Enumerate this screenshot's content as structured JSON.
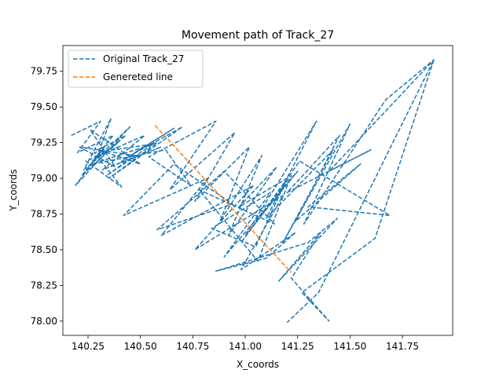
{
  "chart_data": {
    "type": "line",
    "title": "Movement path of Track_27",
    "xlabel": "X_coords",
    "ylabel": "Y_coords",
    "xlim": [
      140.13,
      141.99
    ],
    "ylim": [
      77.9,
      79.93
    ],
    "xticks": [
      140.25,
      140.5,
      140.75,
      141.0,
      141.25,
      141.5,
      141.75
    ],
    "xtick_labels": [
      "140.25",
      "140.50",
      "140.75",
      "141.00",
      "141.25",
      "141.50",
      "141.75"
    ],
    "yticks": [
      78.0,
      78.25,
      78.5,
      78.75,
      79.0,
      79.25,
      79.5,
      79.75
    ],
    "ytick_labels": [
      "78.00",
      "78.25",
      "78.50",
      "78.75",
      "79.00",
      "79.25",
      "79.50",
      "79.75"
    ],
    "grid": false,
    "legend_position": "top-left",
    "series": [
      {
        "name": "Original Track_27",
        "color": "#1f77b4",
        "style": "dashed",
        "x": [
          140.17,
          140.31,
          140.2,
          140.37,
          140.27,
          140.4,
          140.22,
          140.33,
          140.19,
          140.45,
          140.29,
          140.36,
          140.23,
          140.43,
          140.3,
          140.5,
          140.26,
          140.38,
          140.21,
          140.47,
          140.34,
          140.56,
          140.28,
          140.41,
          140.24,
          140.52,
          140.32,
          140.6,
          140.39,
          140.66,
          140.44,
          140.7,
          140.35,
          140.58,
          140.27,
          140.62,
          140.74,
          140.54,
          140.86,
          140.64,
          140.95,
          140.76,
          141.02,
          140.88,
          141.08,
          140.92,
          141.15,
          140.97,
          141.2,
          141.05,
          140.84,
          141.12,
          140.9,
          141.25,
          141.0,
          141.34,
          141.1,
          141.42,
          141.18,
          141.5,
          141.28,
          141.67,
          141.9,
          141.4,
          141.6,
          141.2,
          141.45,
          141.24,
          141.55,
          141.3,
          141.69,
          141.26,
          140.98,
          141.22,
          141.06,
          140.78,
          141.14,
          140.9,
          140.58,
          140.94,
          140.66,
          140.42,
          140.82,
          140.6,
          141.04,
          140.76,
          141.18,
          140.98,
          141.24,
          141.1,
          140.86,
          141.3,
          141.44,
          141.16,
          141.36,
          141.22,
          141.4,
          141.27,
          141.62,
          141.9,
          141.35,
          141.2
        ],
        "y": [
          79.3,
          79.4,
          79.18,
          79.3,
          79.12,
          79.26,
          79.02,
          79.22,
          78.95,
          79.36,
          79.14,
          79.42,
          79.06,
          79.3,
          79.2,
          79.1,
          79.34,
          79.08,
          79.22,
          79.16,
          79.02,
          79.24,
          79.18,
          78.94,
          79.12,
          79.3,
          79.06,
          79.22,
          79.1,
          79.35,
          79.15,
          79.36,
          79.0,
          79.25,
          79.1,
          79.2,
          78.95,
          79.15,
          79.4,
          78.92,
          79.32,
          78.84,
          79.22,
          78.7,
          79.16,
          78.6,
          79.08,
          78.8,
          79.0,
          78.52,
          78.65,
          78.9,
          78.45,
          79.05,
          78.6,
          79.4,
          78.72,
          79.2,
          78.55,
          79.38,
          78.68,
          79.55,
          79.83,
          79.05,
          79.2,
          78.9,
          79.3,
          78.7,
          79.1,
          78.8,
          78.74,
          79.12,
          78.55,
          79.02,
          78.42,
          78.92,
          78.68,
          79.05,
          78.64,
          78.82,
          79.1,
          78.74,
          79.0,
          78.6,
          78.95,
          78.5,
          78.88,
          78.36,
          78.62,
          78.44,
          78.35,
          78.55,
          78.72,
          78.28,
          78.62,
          78.3,
          78.0,
          78.2,
          78.58,
          79.83,
          78.2,
          77.99
        ]
      },
      {
        "name": "Genereted line",
        "color": "#ff7f0e",
        "style": "dashed",
        "x": [
          140.57,
          141.22
        ],
        "y": [
          79.37,
          78.34
        ]
      }
    ]
  }
}
